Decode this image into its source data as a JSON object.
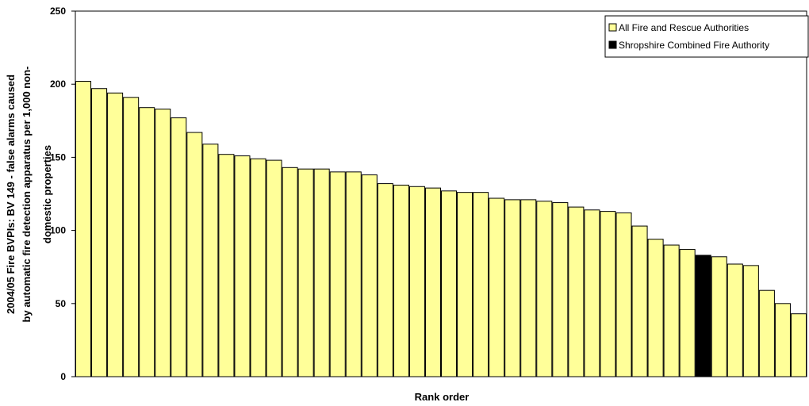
{
  "chart_data": {
    "type": "bar",
    "title": "",
    "xlabel": "Rank order",
    "ylabel_lines": [
      "2004/05 Fire BVPIs: BV 149 - false alarms caused",
      "by automatic fire detection apparatus per 1,000 non-",
      "domestic properties"
    ],
    "ylim": [
      0,
      250
    ],
    "yticks": [
      0,
      50,
      100,
      150,
      200,
      250
    ],
    "grid": false,
    "legend_position": "top-right",
    "legend": [
      {
        "label": "All Fire and Rescue Authorities",
        "color": "#ffff99"
      },
      {
        "label": "Shropshire Combined Fire Authority",
        "color": "#000000"
      }
    ],
    "highlight_index": 39,
    "colors": {
      "bar": "#ffff99",
      "highlight": "#000000",
      "stroke": "#000000"
    },
    "values": [
      202,
      197,
      194,
      191,
      184,
      183,
      177,
      167,
      159,
      152,
      151,
      149,
      148,
      143,
      142,
      142,
      140,
      140,
      138,
      132,
      131,
      130,
      129,
      127,
      126,
      126,
      122,
      121,
      121,
      120,
      119,
      116,
      114,
      113,
      112,
      103,
      94,
      90,
      87,
      83,
      82,
      77,
      76,
      59,
      50,
      43
    ]
  }
}
